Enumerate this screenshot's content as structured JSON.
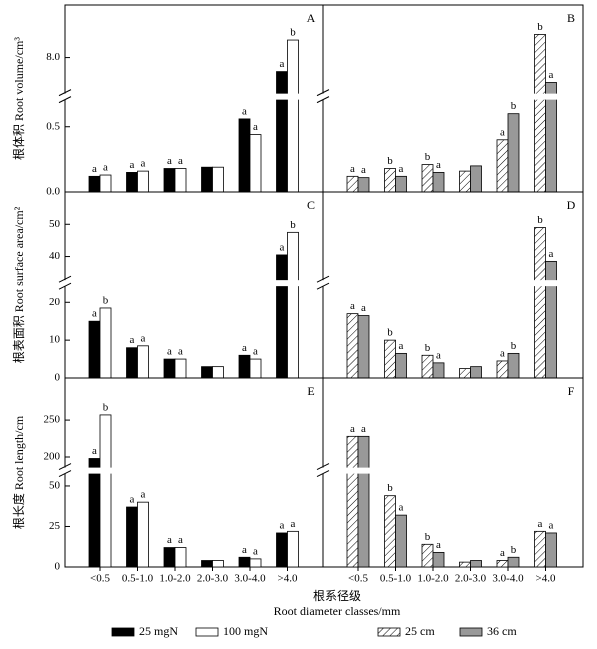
{
  "categories": [
    "<0.5",
    "0.5-1.0",
    "1.0-2.0",
    "2.0-3.0",
    "3.0-4.0",
    ">4.0"
  ],
  "xlabel": [
    "根系径级",
    "Root diameter classes/mm"
  ],
  "chart_data": [
    {
      "type": "bar",
      "title": "A",
      "ylabel": "根体积 Root volume/cm³",
      "ylim_segments": [
        [
          0,
          0.7
        ],
        [
          7,
          9.5
        ]
      ],
      "yticks": [
        {
          "value": 0,
          "label": "0.0"
        },
        {
          "value": 0.5,
          "label": "0.5"
        },
        {
          "value": 8,
          "label": "8.0"
        }
      ],
      "series": [
        {
          "name": "25 mgN",
          "color": "#000000",
          "values": [
            0.12,
            0.15,
            0.18,
            0.19,
            0.56,
            7.6
          ],
          "letters": [
            "a",
            "a",
            "a",
            null,
            "a",
            "a"
          ]
        },
        {
          "name": "100 mgN",
          "color": "#ffffff",
          "values": [
            0.13,
            0.16,
            0.18,
            0.19,
            0.44,
            8.5
          ],
          "letters": [
            "a",
            "a",
            "a",
            null,
            "a",
            "b"
          ]
        }
      ]
    },
    {
      "type": "bar",
      "title": "B",
      "ylim_segments": [
        [
          0,
          0.7
        ],
        [
          7,
          9.5
        ]
      ],
      "series": [
        {
          "name": "25 cm",
          "color": "#ffffff",
          "pattern": "hatch",
          "values": [
            0.12,
            0.18,
            0.21,
            0.16,
            0.4,
            8.66
          ],
          "letters": [
            "a",
            "b",
            "b",
            null,
            "a",
            "b"
          ]
        },
        {
          "name": "36 cm",
          "color": "#999999",
          "values": [
            0.11,
            0.12,
            0.15,
            0.2,
            0.6,
            7.29
          ],
          "letters": [
            "a",
            "a",
            "a",
            null,
            "b",
            "a"
          ]
        }
      ]
    },
    {
      "type": "bar",
      "title": "C",
      "ylabel": "根表面积 Root surface area/cm²",
      "ylim_segments": [
        [
          0,
          24
        ],
        [
          33,
          60
        ]
      ],
      "yticks": [
        0,
        10,
        20,
        40,
        50
      ],
      "series": [
        {
          "color": "#000000",
          "values": [
            15,
            8,
            5,
            3,
            6,
            40.5
          ],
          "letters": [
            "a",
            "a",
            "a",
            null,
            "a",
            "a"
          ]
        },
        {
          "color": "#ffffff",
          "values": [
            18.5,
            8.5,
            5,
            3,
            5,
            47.5
          ],
          "letters": [
            "b",
            "a",
            "a",
            null,
            "a",
            "b"
          ]
        }
      ]
    },
    {
      "type": "bar",
      "title": "D",
      "ylim_segments": [
        [
          0,
          24
        ],
        [
          33,
          60
        ]
      ],
      "series": [
        {
          "color": "#ffffff",
          "pattern": "hatch",
          "values": [
            17,
            10,
            6,
            2.5,
            4.5,
            49
          ],
          "letters": [
            "a",
            "b",
            "b",
            null,
            "a",
            "b"
          ]
        },
        {
          "color": "#999999",
          "values": [
            16.5,
            6.5,
            4,
            3,
            6.5,
            38.5
          ],
          "letters": [
            "a",
            "a",
            "a",
            null,
            "b",
            "a"
          ]
        }
      ]
    },
    {
      "type": "bar",
      "title": "E",
      "ylabel": "根长度 Root length/cm",
      "ylim_segments": [
        [
          0,
          57
        ],
        [
          187,
          307
        ]
      ],
      "yticks": [
        0,
        25,
        50,
        200,
        250
      ],
      "series": [
        {
          "color": "#000000",
          "values": [
            198,
            37,
            12,
            4,
            6,
            21
          ],
          "letters": [
            "a",
            "a",
            "a",
            null,
            "a",
            "a"
          ]
        },
        {
          "color": "#ffffff",
          "values": [
            257,
            40,
            12,
            4,
            5,
            22
          ],
          "letters": [
            "b",
            "a",
            "a",
            null,
            "a",
            "a"
          ]
        }
      ]
    },
    {
      "type": "bar",
      "title": "F",
      "ylim_segments": [
        [
          0,
          57
        ],
        [
          187,
          307
        ]
      ],
      "series": [
        {
          "color": "#ffffff",
          "pattern": "hatch",
          "values": [
            228,
            44,
            14,
            3,
            4,
            22
          ],
          "letters": [
            "a",
            "b",
            "b",
            null,
            "a",
            "a"
          ]
        },
        {
          "color": "#999999",
          "values": [
            228,
            32,
            9,
            4,
            6,
            21
          ],
          "letters": [
            "a",
            "a",
            "a",
            null,
            "b",
            "a"
          ]
        }
      ]
    }
  ]
}
